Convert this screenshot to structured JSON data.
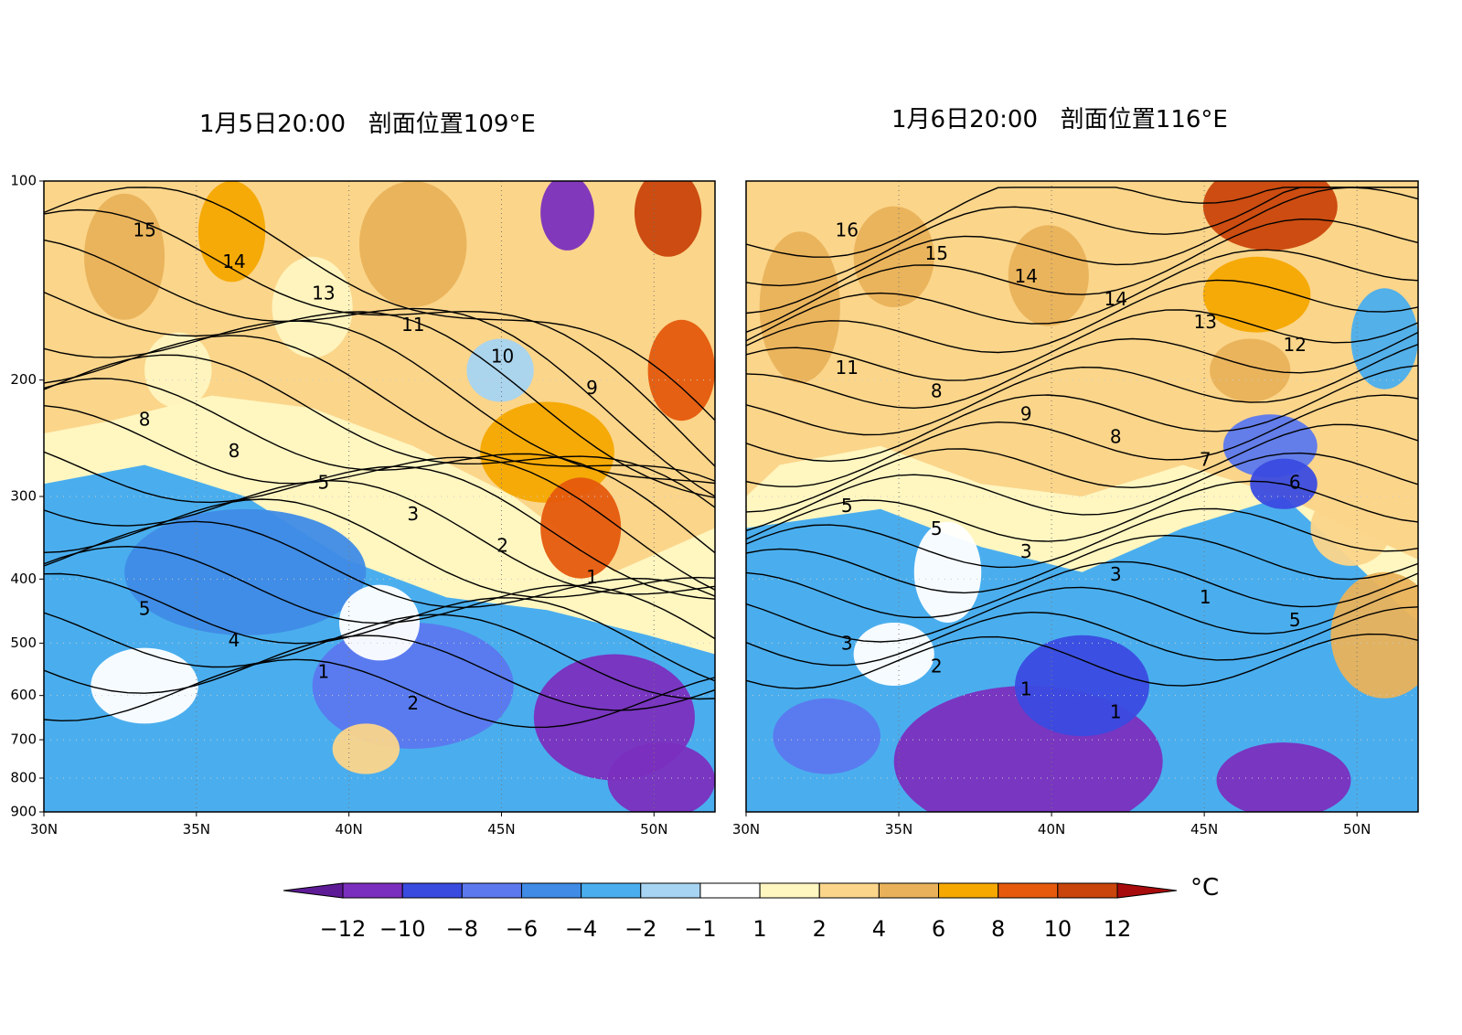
{
  "chart_data": [
    {
      "type": "heatmap",
      "title": "1月5日20:00   剖面位置109°E",
      "x_ticks": [
        "30N",
        "35N",
        "40N",
        "45N",
        "50N"
      ],
      "x_range": [
        30,
        52
      ],
      "y_ticks": [
        "100",
        "200",
        "300",
        "400",
        "500",
        "600",
        "700",
        "800",
        "900"
      ],
      "y_range": [
        900,
        100
      ],
      "y_scale": "log",
      "grid": "dotted",
      "contour_labels": [
        "15",
        "14",
        "13",
        "11",
        "10",
        "9",
        "8",
        "8",
        "5",
        "3",
        "2",
        "1",
        "5",
        "4",
        "1",
        "2"
      ]
    },
    {
      "type": "heatmap",
      "title": "1月6日20:00   剖面位置116°E",
      "x_ticks": [
        "30N",
        "35N",
        "40N",
        "45N",
        "50N"
      ],
      "x_range": [
        30,
        52
      ],
      "y_range": [
        900,
        100
      ],
      "y_scale": "log",
      "grid": "dotted",
      "contour_labels": [
        "16",
        "15",
        "14",
        "14",
        "13",
        "12",
        "11",
        "8",
        "9",
        "8",
        "7",
        "6",
        "5",
        "5",
        "3",
        "3",
        "1",
        "5",
        "3",
        "2",
        "1",
        "1"
      ]
    }
  ],
  "colorbar": {
    "ticks": [
      "−12",
      "−10",
      "−8",
      "−6",
      "−4",
      "−2",
      "−1",
      "1",
      "2",
      "4",
      "6",
      "8",
      "10",
      "12"
    ],
    "colors": [
      "#7b2fbe",
      "#3a4be0",
      "#5b78ee",
      "#3f8be6",
      "#4aaeee",
      "#a7d4f2",
      "#ffffff",
      "#fff6c0",
      "#fbd58a",
      "#e9b25a",
      "#f6a800",
      "#e55a0d",
      "#c9450b"
    ],
    "end_colors": [
      "#5e1b96",
      "#a80b0b"
    ],
    "unit": "°C"
  }
}
